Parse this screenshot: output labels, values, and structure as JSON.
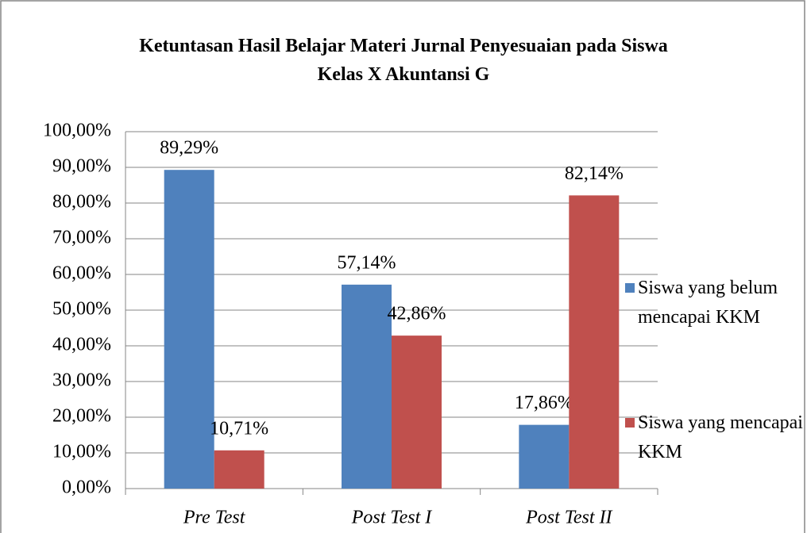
{
  "chart_data": {
    "type": "bar",
    "title": "Ketuntasan Hasil Belajar Materi Jurnal Penyesuaian pada Siswa Kelas X Akuntansi G",
    "categories": [
      "Pre Test",
      "Post Test I",
      "Post Test II"
    ],
    "series": [
      {
        "name": "Siswa yang belum mencapai KKM",
        "color": "#4f81bd",
        "values": [
          89.29,
          57.14,
          17.86
        ],
        "value_labels": [
          "89,29%",
          "57,14%",
          "17,86%"
        ]
      },
      {
        "name": "Siswa yang mencapai KKM",
        "color": "#c0504d",
        "values": [
          10.71,
          42.86,
          82.14
        ],
        "value_labels": [
          "10,71%",
          "42,86%",
          "82,14%"
        ]
      }
    ],
    "ylim": [
      0,
      100
    ],
    "yticks": [
      {
        "value": 0,
        "label": "0,00%"
      },
      {
        "value": 10,
        "label": "10,00%"
      },
      {
        "value": 20,
        "label": "20,00%"
      },
      {
        "value": 30,
        "label": "30,00%"
      },
      {
        "value": 40,
        "label": "40,00%"
      },
      {
        "value": 50,
        "label": "50,00%"
      },
      {
        "value": 60,
        "label": "60,00%"
      },
      {
        "value": 70,
        "label": "70,00%"
      },
      {
        "value": 80,
        "label": "80,00%"
      },
      {
        "value": 90,
        "label": "90,00%"
      },
      {
        "value": 100,
        "label": "100,00%"
      }
    ],
    "grid": true,
    "legend": "right"
  }
}
